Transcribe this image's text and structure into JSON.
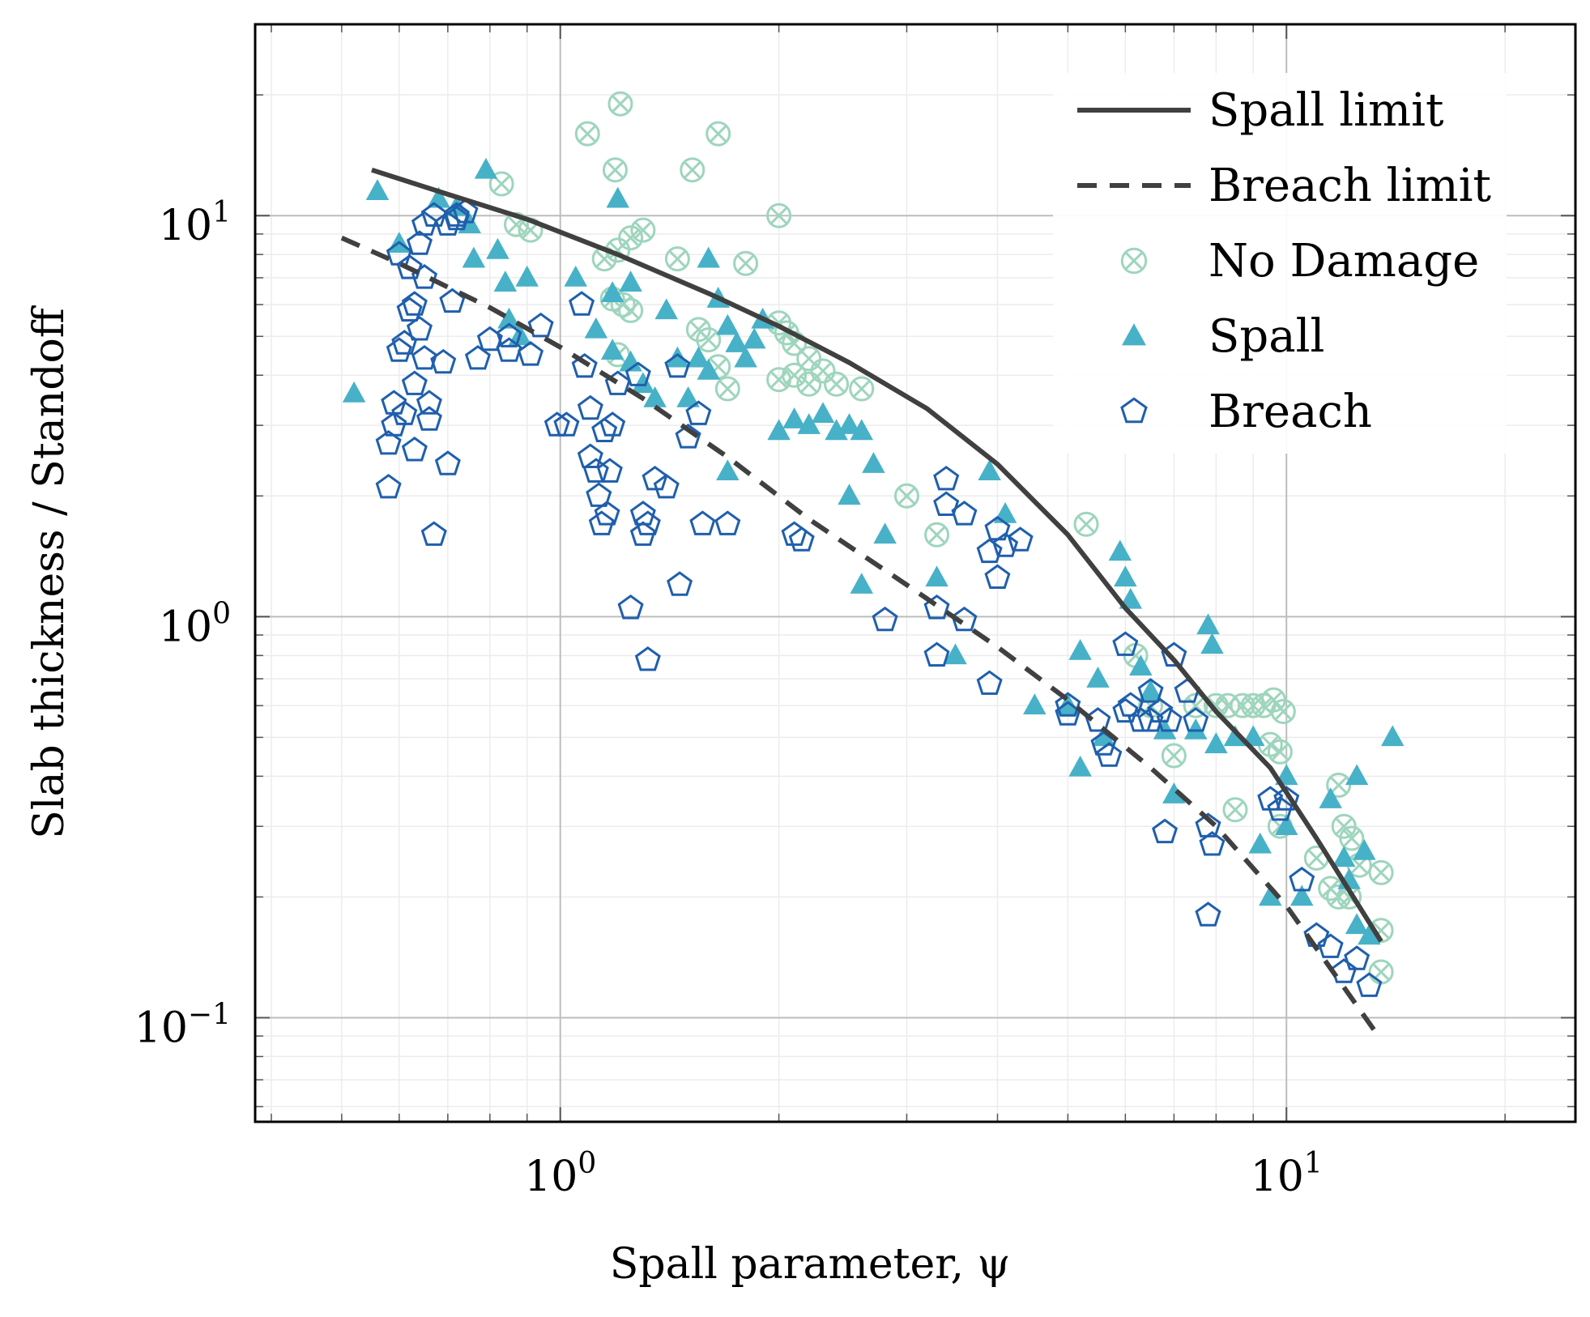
{
  "chart_data": {
    "type": "scatter",
    "xlabel": "Spall parameter, ψ",
    "ylabel": "Slab thickness / Standoff",
    "xscale": "log",
    "yscale": "log",
    "xlim": [
      0.38,
      25
    ],
    "ylim": [
      0.055,
      30
    ],
    "x_ticks": [
      {
        "value": 1,
        "base": "10",
        "exp": "0"
      },
      {
        "value": 10,
        "base": "10",
        "exp": "1"
      }
    ],
    "y_ticks": [
      {
        "value": 0.1,
        "base": "10",
        "exp": "−1"
      },
      {
        "value": 1,
        "base": "10",
        "exp": "0"
      },
      {
        "value": 10,
        "base": "10",
        "exp": "1"
      }
    ],
    "grid": true,
    "legend_position": "top-right",
    "colors": {
      "spall_limit": "#404040",
      "breach_limit": "#404040",
      "no_damage": "#9ed5bd",
      "spall": "#47b1c8",
      "breach": "#1f5fad"
    },
    "series": [
      {
        "name": "Spall limit",
        "style": "solid-line",
        "points": [
          [
            0.55,
            13.0
          ],
          [
            0.7,
            11.3
          ],
          [
            0.9,
            9.8
          ],
          [
            1.2,
            8.0
          ],
          [
            1.6,
            6.4
          ],
          [
            2.0,
            5.3
          ],
          [
            2.5,
            4.3
          ],
          [
            3.2,
            3.3
          ],
          [
            4.0,
            2.4
          ],
          [
            5.0,
            1.6
          ],
          [
            6.0,
            1.05
          ],
          [
            7.0,
            0.78
          ],
          [
            8.0,
            0.58
          ],
          [
            9.5,
            0.42
          ],
          [
            11.0,
            0.28
          ],
          [
            13.5,
            0.155
          ]
        ]
      },
      {
        "name": "Breach limit",
        "style": "dashed-line",
        "points": [
          [
            0.5,
            8.8
          ],
          [
            0.6,
            7.6
          ],
          [
            0.8,
            5.9
          ],
          [
            1.0,
            4.7
          ],
          [
            1.3,
            3.5
          ],
          [
            1.7,
            2.5
          ],
          [
            2.2,
            1.75
          ],
          [
            3.0,
            1.2
          ],
          [
            4.0,
            0.84
          ],
          [
            5.0,
            0.62
          ],
          [
            6.5,
            0.42
          ],
          [
            8.0,
            0.3
          ],
          [
            10.0,
            0.19
          ],
          [
            13.5,
            0.088
          ]
        ]
      },
      {
        "name": "No Damage",
        "style": "circle-cross",
        "points": [
          [
            0.83,
            12.0
          ],
          [
            0.87,
            9.5
          ],
          [
            0.91,
            9.2
          ],
          [
            1.09,
            16.0
          ],
          [
            1.19,
            13.0
          ],
          [
            1.21,
            19.0
          ],
          [
            1.52,
            13.0
          ],
          [
            1.65,
            16.0
          ],
          [
            1.45,
            7.8
          ],
          [
            1.8,
            7.6
          ],
          [
            2.0,
            10.0
          ],
          [
            1.15,
            7.8
          ],
          [
            1.2,
            8.2
          ],
          [
            1.25,
            8.8
          ],
          [
            1.3,
            9.2
          ],
          [
            1.18,
            6.2
          ],
          [
            1.22,
            6.0
          ],
          [
            1.25,
            5.8
          ],
          [
            1.2,
            4.5
          ],
          [
            1.55,
            5.2
          ],
          [
            1.6,
            4.9
          ],
          [
            1.65,
            4.2
          ],
          [
            1.7,
            3.7
          ],
          [
            2.0,
            5.4
          ],
          [
            2.05,
            5.1
          ],
          [
            2.1,
            4.8
          ],
          [
            2.2,
            4.4
          ],
          [
            2.3,
            4.1
          ],
          [
            2.0,
            3.9
          ],
          [
            2.1,
            4.0
          ],
          [
            2.2,
            3.8
          ],
          [
            2.4,
            3.8
          ],
          [
            2.6,
            3.7
          ],
          [
            3.0,
            2.0
          ],
          [
            3.3,
            1.6
          ],
          [
            5.3,
            1.7
          ],
          [
            6.2,
            0.8
          ],
          [
            6.5,
            0.6
          ],
          [
            7.0,
            0.45
          ],
          [
            7.5,
            0.6
          ],
          [
            8.0,
            0.6
          ],
          [
            8.3,
            0.6
          ],
          [
            8.7,
            0.6
          ],
          [
            9.0,
            0.6
          ],
          [
            9.3,
            0.6
          ],
          [
            9.6,
            0.62
          ],
          [
            9.9,
            0.58
          ],
          [
            9.5,
            0.48
          ],
          [
            9.8,
            0.46
          ],
          [
            8.5,
            0.33
          ],
          [
            9.8,
            0.3
          ],
          [
            11.0,
            0.25
          ],
          [
            11.5,
            0.21
          ],
          [
            11.8,
            0.38
          ],
          [
            12.0,
            0.3
          ],
          [
            12.3,
            0.28
          ],
          [
            12.6,
            0.24
          ],
          [
            11.8,
            0.2
          ],
          [
            12.2,
            0.2
          ],
          [
            13.5,
            0.23
          ],
          [
            13.5,
            0.165
          ],
          [
            13.5,
            0.13
          ]
        ]
      },
      {
        "name": "Spall",
        "style": "filled-triangle",
        "points": [
          [
            0.52,
            3.6
          ],
          [
            0.56,
            11.5
          ],
          [
            0.6,
            8.5
          ],
          [
            0.68,
            11.0
          ],
          [
            0.72,
            10.5
          ],
          [
            0.75,
            9.5
          ],
          [
            0.76,
            7.8
          ],
          [
            0.79,
            13.0
          ],
          [
            0.82,
            8.2
          ],
          [
            0.84,
            6.8
          ],
          [
            0.85,
            5.5
          ],
          [
            0.88,
            5.0
          ],
          [
            0.9,
            7.0
          ],
          [
            1.05,
            7.0
          ],
          [
            1.12,
            5.2
          ],
          [
            1.18,
            6.4
          ],
          [
            1.2,
            11.0
          ],
          [
            1.25,
            6.8
          ],
          [
            1.18,
            4.6
          ],
          [
            1.25,
            4.3
          ],
          [
            1.3,
            3.8
          ],
          [
            1.35,
            3.5
          ],
          [
            1.4,
            5.8
          ],
          [
            1.45,
            4.4
          ],
          [
            1.5,
            3.5
          ],
          [
            1.55,
            4.4
          ],
          [
            1.6,
            4.1
          ],
          [
            1.6,
            7.8
          ],
          [
            1.65,
            6.2
          ],
          [
            1.7,
            5.3
          ],
          [
            1.75,
            4.8
          ],
          [
            1.8,
            4.4
          ],
          [
            1.85,
            4.9
          ],
          [
            1.9,
            5.5
          ],
          [
            1.7,
            2.3
          ],
          [
            2.0,
            2.9
          ],
          [
            2.1,
            3.1
          ],
          [
            2.2,
            3.0
          ],
          [
            2.3,
            3.2
          ],
          [
            2.4,
            2.9
          ],
          [
            2.5,
            3.0
          ],
          [
            2.6,
            2.9
          ],
          [
            2.5,
            2.0
          ],
          [
            2.7,
            2.4
          ],
          [
            2.8,
            1.6
          ],
          [
            2.6,
            1.2
          ],
          [
            3.3,
            1.25
          ],
          [
            3.5,
            0.8
          ],
          [
            3.9,
            2.3
          ],
          [
            4.1,
            1.8
          ],
          [
            4.5,
            0.6
          ],
          [
            5.0,
            0.6
          ],
          [
            5.2,
            0.82
          ],
          [
            5.5,
            0.7
          ],
          [
            5.2,
            0.42
          ],
          [
            5.6,
            0.5
          ],
          [
            5.9,
            1.45
          ],
          [
            6.0,
            1.25
          ],
          [
            6.1,
            1.1
          ],
          [
            6.3,
            0.75
          ],
          [
            6.5,
            0.65
          ],
          [
            6.8,
            0.52
          ],
          [
            7.0,
            0.36
          ],
          [
            7.5,
            0.52
          ],
          [
            7.8,
            0.95
          ],
          [
            7.9,
            0.85
          ],
          [
            8.0,
            0.48
          ],
          [
            8.5,
            0.5
          ],
          [
            9.0,
            0.5
          ],
          [
            9.2,
            0.27
          ],
          [
            9.5,
            0.2
          ],
          [
            10.0,
            0.4
          ],
          [
            10.0,
            0.3
          ],
          [
            10.5,
            0.2
          ],
          [
            11.5,
            0.35
          ],
          [
            12.0,
            0.25
          ],
          [
            12.5,
            0.4
          ],
          [
            12.2,
            0.22
          ],
          [
            12.8,
            0.26
          ],
          [
            12.5,
            0.17
          ],
          [
            13.0,
            0.16
          ],
          [
            14.0,
            0.5
          ]
        ]
      },
      {
        "name": "Breach",
        "style": "hollow-pentagon",
        "points": [
          [
            0.58,
            2.1
          ],
          [
            0.58,
            2.7
          ],
          [
            0.59,
            3.0
          ],
          [
            0.59,
            3.4
          ],
          [
            0.6,
            4.6
          ],
          [
            0.6,
            8.0
          ],
          [
            0.61,
            3.2
          ],
          [
            0.61,
            4.8
          ],
          [
            0.62,
            5.8
          ],
          [
            0.62,
            7.4
          ],
          [
            0.63,
            2.6
          ],
          [
            0.63,
            3.8
          ],
          [
            0.63,
            6.0
          ],
          [
            0.64,
            5.2
          ],
          [
            0.64,
            8.5
          ],
          [
            0.65,
            4.4
          ],
          [
            0.65,
            7.0
          ],
          [
            0.65,
            9.5
          ],
          [
            0.66,
            3.1
          ],
          [
            0.66,
            3.4
          ],
          [
            0.67,
            1.6
          ],
          [
            0.67,
            10.0
          ],
          [
            0.69,
            4.3
          ],
          [
            0.7,
            2.4
          ],
          [
            0.7,
            9.5
          ],
          [
            0.71,
            6.1
          ],
          [
            0.72,
            10.0
          ],
          [
            0.72,
            9.8
          ],
          [
            0.74,
            10.2
          ],
          [
            0.77,
            4.4
          ],
          [
            0.8,
            4.9
          ],
          [
            0.85,
            5.0
          ],
          [
            0.85,
            4.6
          ],
          [
            0.91,
            4.5
          ],
          [
            0.94,
            5.3
          ],
          [
            0.99,
            3.0
          ],
          [
            1.02,
            3.0
          ],
          [
            1.07,
            6.0
          ],
          [
            1.08,
            4.2
          ],
          [
            1.1,
            3.3
          ],
          [
            1.1,
            2.5
          ],
          [
            1.12,
            2.3
          ],
          [
            1.13,
            2.0
          ],
          [
            1.14,
            1.7
          ],
          [
            1.15,
            2.9
          ],
          [
            1.16,
            1.8
          ],
          [
            1.17,
            2.3
          ],
          [
            1.18,
            3.0
          ],
          [
            1.2,
            3.8
          ],
          [
            1.25,
            1.05
          ],
          [
            1.3,
            1.6
          ],
          [
            1.32,
            0.78
          ],
          [
            1.28,
            4.0
          ],
          [
            1.3,
            1.8
          ],
          [
            1.32,
            1.7
          ],
          [
            1.35,
            2.2
          ],
          [
            1.4,
            2.1
          ],
          [
            1.45,
            4.2
          ],
          [
            1.46,
            1.2
          ],
          [
            1.5,
            2.8
          ],
          [
            1.55,
            3.2
          ],
          [
            1.57,
            1.7
          ],
          [
            1.7,
            1.7
          ],
          [
            2.1,
            1.6
          ],
          [
            2.15,
            1.55
          ],
          [
            2.8,
            0.98
          ],
          [
            3.3,
            1.05
          ],
          [
            3.3,
            0.8
          ],
          [
            3.4,
            2.2
          ],
          [
            3.4,
            1.9
          ],
          [
            3.6,
            0.98
          ],
          [
            3.6,
            1.8
          ],
          [
            3.9,
            1.45
          ],
          [
            3.9,
            0.68
          ],
          [
            4.0,
            1.65
          ],
          [
            4.0,
            1.25
          ],
          [
            4.1,
            1.5
          ],
          [
            4.3,
            1.55
          ],
          [
            5.0,
            0.6
          ],
          [
            5.0,
            0.57
          ],
          [
            5.5,
            0.55
          ],
          [
            5.6,
            0.48
          ],
          [
            5.7,
            0.45
          ],
          [
            6.0,
            0.58
          ],
          [
            6.1,
            0.6
          ],
          [
            6.3,
            0.55
          ],
          [
            6.5,
            0.55
          ],
          [
            6.7,
            0.58
          ],
          [
            6.9,
            0.55
          ],
          [
            6.0,
            0.85
          ],
          [
            6.5,
            0.65
          ],
          [
            7.0,
            0.8
          ],
          [
            7.3,
            0.65
          ],
          [
            7.5,
            0.55
          ],
          [
            6.8,
            0.29
          ],
          [
            7.8,
            0.3
          ],
          [
            7.9,
            0.27
          ],
          [
            7.8,
            0.18
          ],
          [
            9.5,
            0.35
          ],
          [
            9.8,
            0.33
          ],
          [
            10.0,
            0.35
          ],
          [
            10.5,
            0.22
          ],
          [
            11.0,
            0.16
          ],
          [
            11.5,
            0.15
          ],
          [
            12.0,
            0.13
          ],
          [
            12.5,
            0.14
          ],
          [
            13.0,
            0.12
          ]
        ]
      }
    ]
  }
}
